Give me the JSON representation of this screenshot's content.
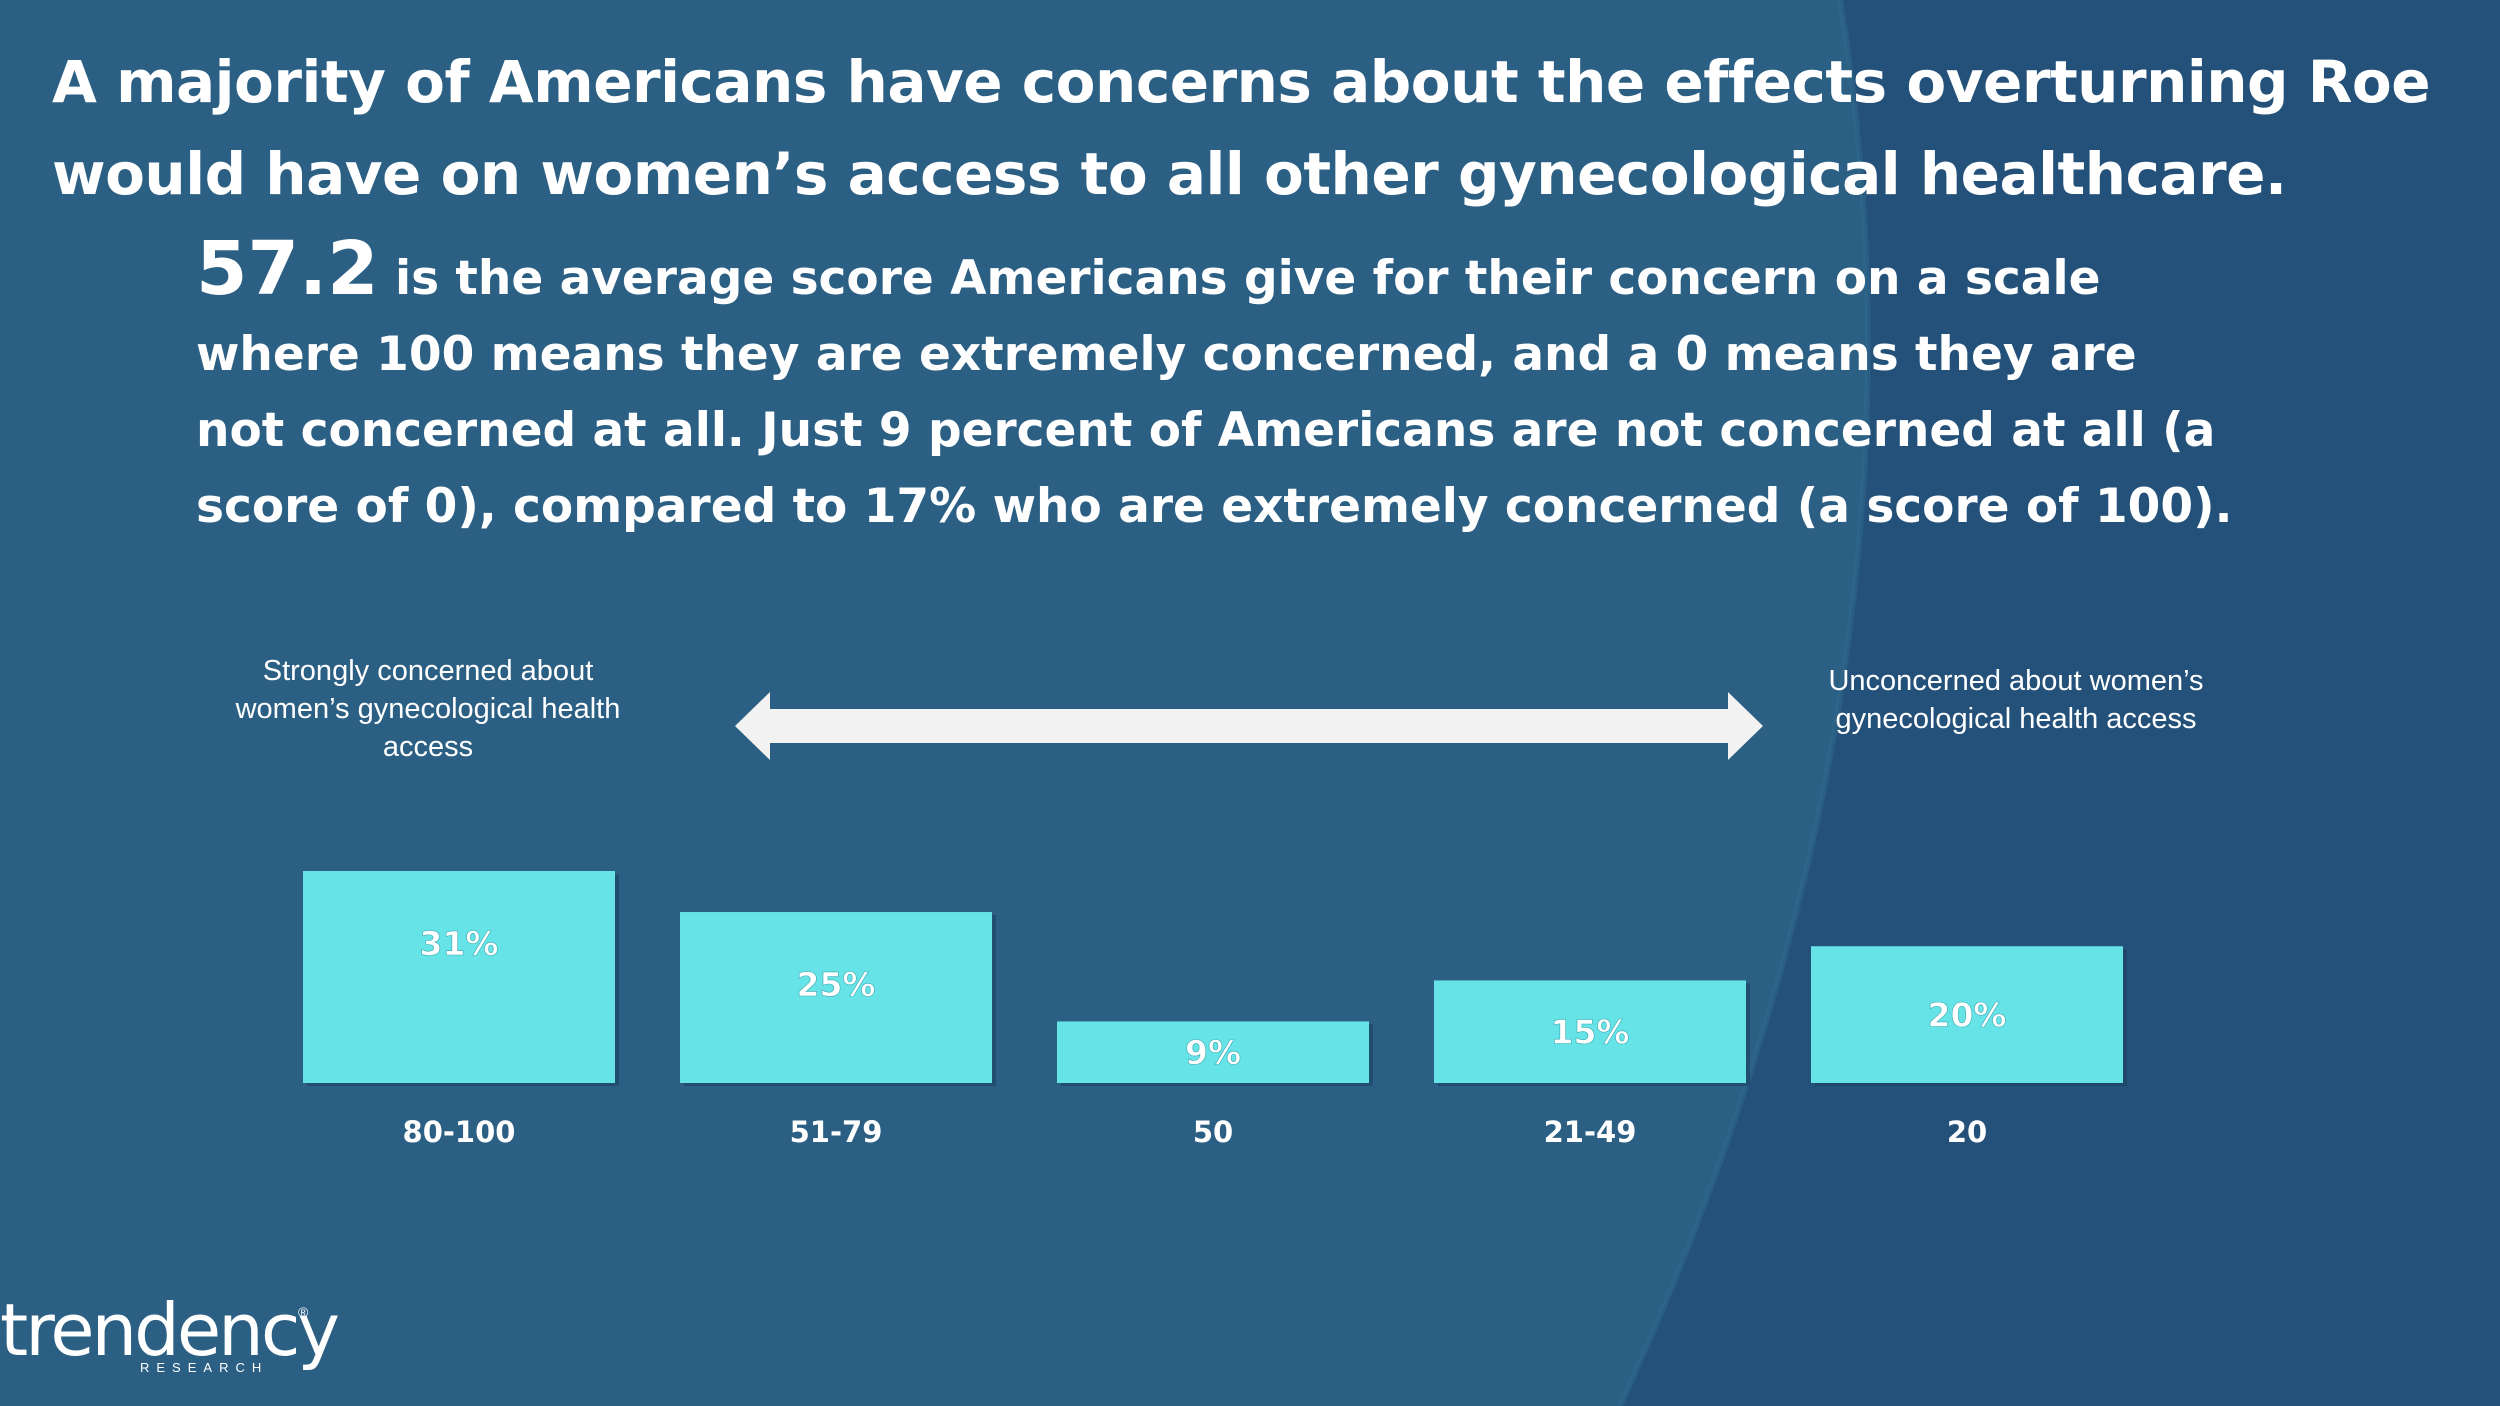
{
  "slide": {
    "title_line1": "A majority of Americans have concerns about the effects overturning Roe",
    "title_line2": "would have on women’s access to all other gynecological healthcare.",
    "score": "57.2",
    "subtitle_rest": " is the average score Americans give for their concern on a scale where 100 means they are extremely concerned, and a 0 means they are not concerned at all. Just 9 percent of Americans are not concerned at all (a score of 0), compared to 17% who are extremely concerned (a score of 100).",
    "left_label": "Strongly concerned about women’s gynecological health access",
    "right_label": "Unconcerned about women’s gynecological health access"
  },
  "chart_data": {
    "type": "bar",
    "title": "",
    "xlabel": "",
    "ylabel": "",
    "categories": [
      "80-100",
      "51-79",
      "50",
      "21-49",
      "20"
    ],
    "values": [
      31,
      25,
      9,
      15,
      20
    ],
    "data_labels": [
      "31%",
      "25%",
      "9%",
      "15%",
      "20%"
    ],
    "ylim": [
      0,
      31
    ],
    "grid": false,
    "bar_color": "#66e3e6"
  },
  "colors": {
    "background": "#2a5f82",
    "background_dark": "#234f70",
    "bar": "#66e3e6",
    "text": "#ffffff",
    "arrow": "#f2f2f2"
  },
  "logo": {
    "word": "trendency",
    "sub": "RESEARCH",
    "mark": "®"
  }
}
